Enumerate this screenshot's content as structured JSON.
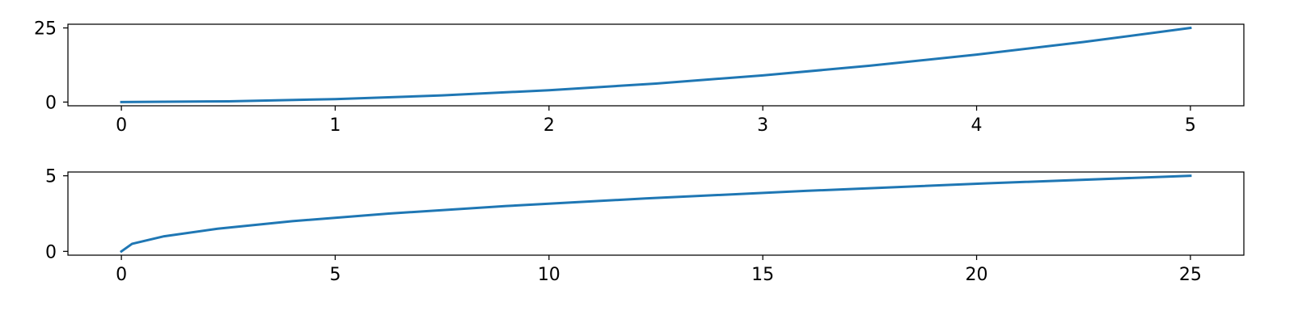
{
  "colors": {
    "series": "#1f77b4",
    "axes": "#000000",
    "background": "#ffffff"
  },
  "chart_data": [
    {
      "type": "line",
      "title": "",
      "xlabel": "",
      "ylabel": "",
      "xlim": [
        -0.25,
        5.25
      ],
      "ylim": [
        -1.25,
        26.25
      ],
      "xticks": [
        0,
        1,
        2,
        3,
        4,
        5
      ],
      "xtick_labels": [
        "0",
        "1",
        "2",
        "3",
        "4",
        "5"
      ],
      "yticks": [
        0,
        25
      ],
      "ytick_labels": [
        "0",
        "25"
      ],
      "grid": false,
      "series": [
        {
          "x": [
            0,
            0.5,
            1,
            1.5,
            2,
            2.5,
            3,
            3.5,
            4,
            4.5,
            5
          ],
          "y": [
            0,
            0.25,
            1,
            2.25,
            4,
            6.25,
            9,
            12.25,
            16,
            20.25,
            25
          ]
        }
      ]
    },
    {
      "type": "line",
      "title": "",
      "xlabel": "",
      "ylabel": "",
      "xlim": [
        -1.25,
        26.25
      ],
      "ylim": [
        -0.25,
        5.25
      ],
      "xticks": [
        0,
        5,
        10,
        15,
        20,
        25
      ],
      "xtick_labels": [
        "0",
        "5",
        "10",
        "15",
        "20",
        "25"
      ],
      "yticks": [
        0,
        5
      ],
      "ytick_labels": [
        "0",
        "5"
      ],
      "grid": false,
      "series": [
        {
          "x": [
            0,
            0.25,
            1,
            2.25,
            4,
            6.25,
            9,
            12.25,
            16,
            20.25,
            25
          ],
          "y": [
            0,
            0.5,
            1,
            1.5,
            2,
            2.5,
            3,
            3.5,
            4,
            4.5,
            5
          ]
        }
      ]
    }
  ]
}
